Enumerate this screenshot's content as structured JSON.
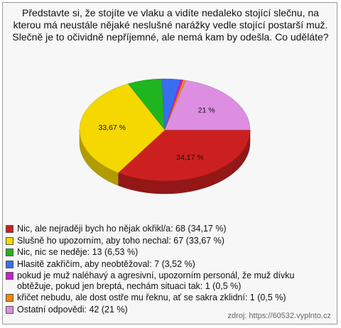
{
  "chart_data": {
    "type": "pie",
    "title": "Představte si, že stojíte ve vlaku a vidíte nedaleko stojící slečnu, na kterou má neustále nějaké neslušné narážky vedle stojící postarší muž. Slečně je to očividně nepříjemné, ale nemá kam by odešla. Co uděláte?",
    "categories": [
      "Nic, ale nejraději bych ho nějak okřikl/a: 68 (34,17 %)",
      "Slušně ho upozorním, aby toho nechal: 67 (33,67 %)",
      "Nic, nic se neděje: 13 (6,53 %)",
      "Hlasitě zakřičím, aby neobtěžoval: 7 (3,52 %)",
      "pokud je muž naléhavý a agresivní, upozorním personál, že muž dívku obtěžuje, pokud jen breptá, nechám situaci tak: 1 (0,5 %)",
      "křičet nebudu, ale dost ostře mu řeknu, ať se sakra zklidní: 1 (0,5 %)",
      "Ostatní odpovědi: 42 (21 %)"
    ],
    "values": [
      34.17,
      33.67,
      6.53,
      3.52,
      0.5,
      0.5,
      21
    ],
    "value_labels": [
      "34,17 %",
      "33,67 %",
      null,
      null,
      null,
      null,
      "21 %"
    ],
    "colors": [
      "#cc2020",
      "#f4d800",
      "#1fb51f",
      "#3a6ef0",
      "#c81fc8",
      "#ef8a00",
      "#dd8ee0"
    ],
    "source": "zdroj: https://60532.vyplnto.cz"
  }
}
